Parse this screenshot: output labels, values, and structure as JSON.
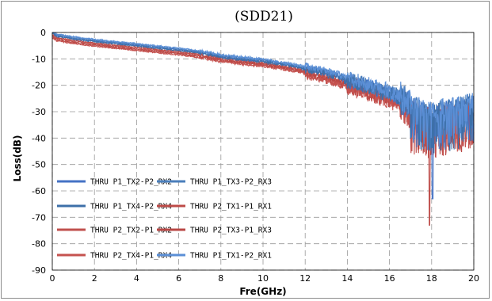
{
  "chart_data": {
    "type": "line",
    "title": "(SDD21)",
    "xlabel": "Fre(GHz)",
    "ylabel": "Loss(dB)",
    "xlim": [
      0,
      20
    ],
    "ylim": [
      -90,
      0
    ],
    "xticks": [
      0,
      2,
      4,
      6,
      8,
      10,
      12,
      14,
      16,
      18,
      20
    ],
    "yticks": [
      0,
      -10,
      -20,
      -30,
      -40,
      -50,
      -60,
      -70,
      -80,
      -90
    ],
    "grid": true,
    "legend_position": "bottom-left",
    "envelope_points": {
      "x": [
        0,
        0.2,
        1,
        2,
        3,
        4,
        5,
        6,
        7,
        7.5,
        8,
        9,
        10,
        11,
        12,
        13,
        13.5,
        14,
        15,
        16,
        16.5,
        17,
        17.5,
        18,
        18.5,
        19,
        19.5,
        20
      ],
      "y": [
        0,
        -1.2,
        -2.2,
        -3.2,
        -4,
        -4.8,
        -5.7,
        -6.5,
        -7.5,
        -8.2,
        -9,
        -10,
        -10.7,
        -12,
        -13.5,
        -15.3,
        -16.5,
        -18,
        -20.5,
        -23,
        -25,
        -28,
        -30,
        -31,
        -30,
        -29.5,
        -28,
        -27
      ]
    },
    "series": [
      {
        "name": "THRU  P1_TX2-P2_RX2",
        "color": "#4472c4",
        "offset": 0
      },
      {
        "name": "THRU  P1_TX3-P2_RX3",
        "color": "#4a7ebb",
        "offset": 0.3
      },
      {
        "name": "THRU  P1_TX4-P2_RX4",
        "color": "#3d6fa8",
        "offset": -0.3
      },
      {
        "name": "THRU  P2_TX1-P1_RX1",
        "color": "#be4b48",
        "offset": -0.8
      },
      {
        "name": "THRU  P2_TX2-P1_RX2",
        "color": "#c0504d",
        "offset": -1.2
      },
      {
        "name": "THRU  P2_TX3-P1_RX3",
        "color": "#b94744",
        "offset": -1.6
      },
      {
        "name": "THRU  P2_TX4-P1_RX4",
        "color": "#c5524f",
        "offset": -2
      },
      {
        "name": "THRU P1_TX1-P2_RX1",
        "color": "#5b8fd6",
        "offset": 0.6
      }
    ]
  }
}
